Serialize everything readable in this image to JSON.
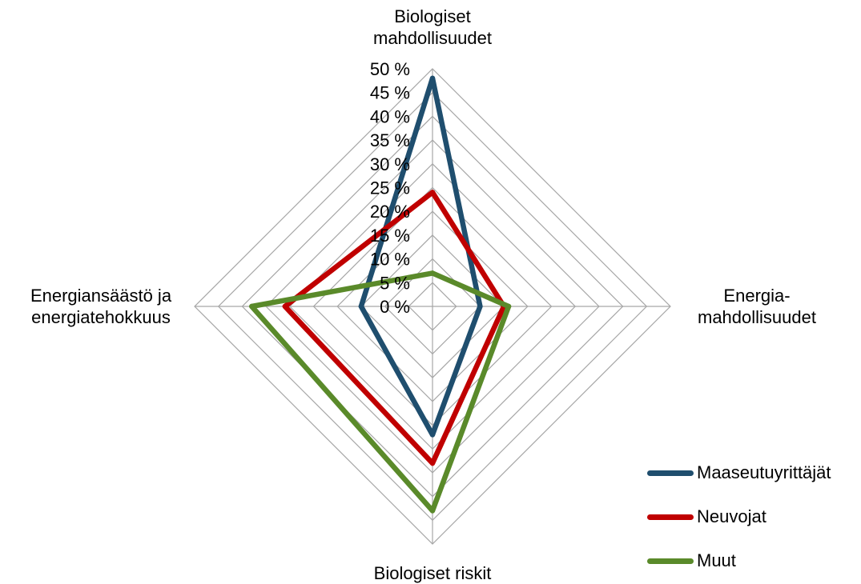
{
  "chart_data": {
    "type": "radar",
    "title": "",
    "axes": [
      {
        "key": "top",
        "label_lines": [
          "Biologiset",
          "mahdollisuudet"
        ]
      },
      {
        "key": "right",
        "label_lines": [
          "Energia-",
          "mahdollisuudet"
        ]
      },
      {
        "key": "bottom",
        "label_lines": [
          "Biologiset riskit"
        ]
      },
      {
        "key": "left",
        "label_lines": [
          "Energiansäästö ja",
          "energiatehokkuus"
        ]
      }
    ],
    "radial_range": [
      0,
      50
    ],
    "radial_step": 5,
    "tick_labels": [
      "0 %",
      "5 %",
      "10 %",
      "15 %",
      "20 %",
      "25 %",
      "30 %",
      "35 %",
      "40 %",
      "45 %",
      "50 %"
    ],
    "grid": true,
    "legend_position": "bottom-right",
    "series": [
      {
        "name": "Maaseutuyrittäjät",
        "color": "#1f4e6e",
        "values": [
          48,
          10,
          27,
          15
        ]
      },
      {
        "name": "Neuvojat",
        "color": "#c00000",
        "values": [
          24,
          15,
          33,
          31
        ]
      },
      {
        "name": "Muut",
        "color": "#5a8a2a",
        "values": [
          7,
          16,
          43,
          38
        ]
      }
    ]
  }
}
